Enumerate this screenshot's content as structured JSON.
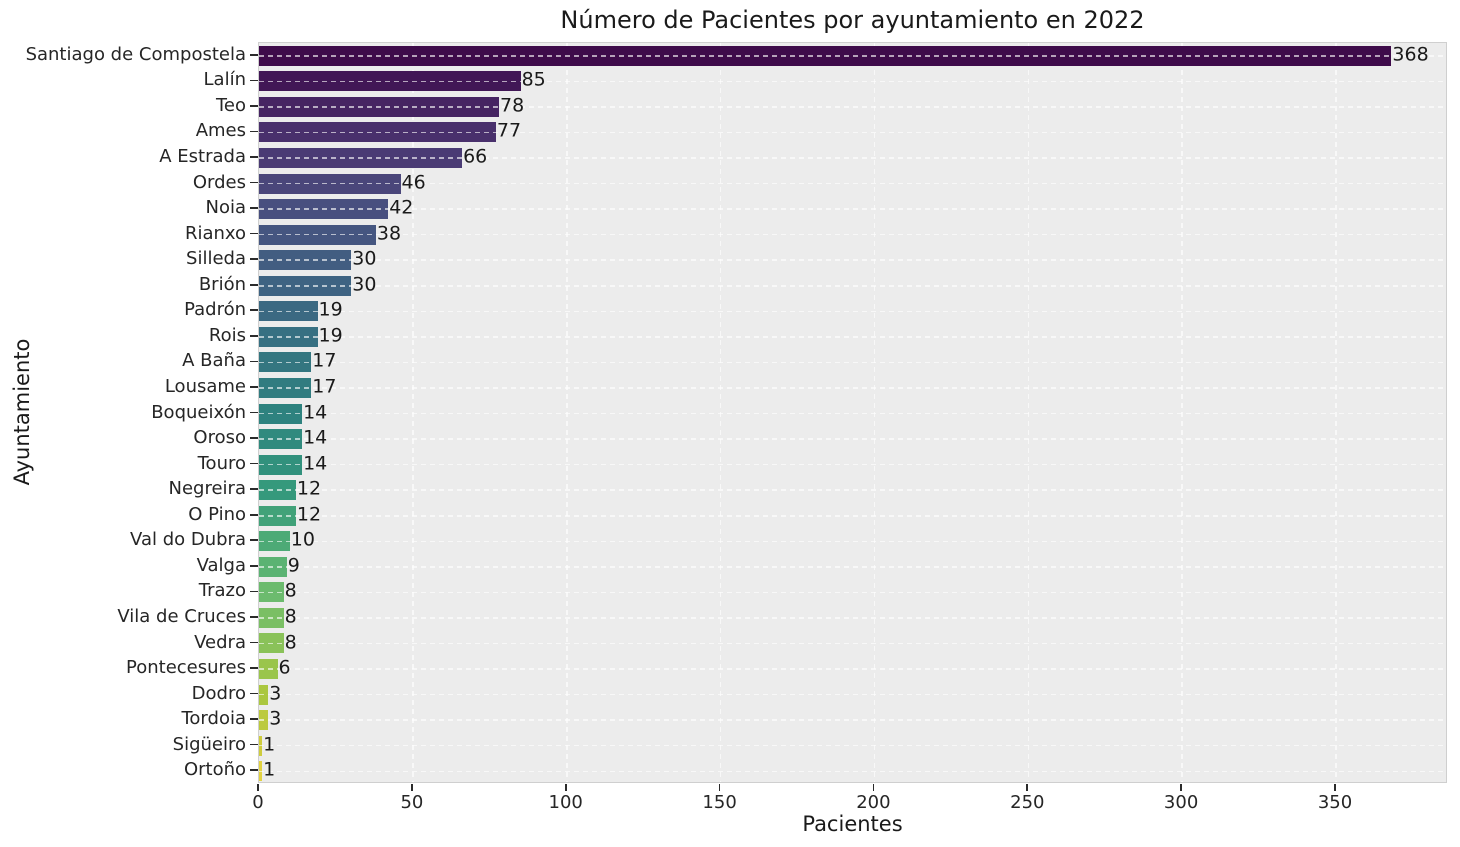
{
  "chart_data": {
    "type": "bar",
    "orientation": "horizontal",
    "title": "Número de Pacientes por ayuntamiento en 2022",
    "xlabel": "Pacientes",
    "ylabel": "Ayuntamiento",
    "categories": [
      "Santiago de Compostela",
      "Lalín",
      "Teo",
      "Ames",
      "A Estrada",
      "Ordes",
      "Noia",
      "Rianxo",
      "Silleda",
      "Brión",
      "Padrón",
      "Rois",
      "A Baña",
      "Lousame",
      "Boqueixón",
      "Oroso",
      "Touro",
      "Negreira",
      "O Pino",
      "Val do Dubra",
      "Valga",
      "Trazo",
      "Vila de Cruces",
      "Vedra",
      "Pontecesures",
      "Dodro",
      "Tordoia",
      "Sigüeiro",
      "Ortoño"
    ],
    "values": [
      368,
      85,
      78,
      77,
      66,
      46,
      42,
      38,
      30,
      30,
      19,
      19,
      17,
      17,
      14,
      14,
      14,
      12,
      12,
      10,
      9,
      8,
      8,
      8,
      6,
      3,
      3,
      1,
      1
    ],
    "bar_colors": [
      "#3e0b4a",
      "#411756",
      "#462462",
      "#49306c",
      "#4a3b74",
      "#4a467a",
      "#484f7f",
      "#455680",
      "#425d81",
      "#3e6382",
      "#3b6982",
      "#377082",
      "#347680",
      "#317c80",
      "#2e827f",
      "#308a7e",
      "#32917d",
      "#35997c",
      "#41a279",
      "#4daa76",
      "#5bb373",
      "#6cbb6e",
      "#7abf64",
      "#8ac259",
      "#9ac54c",
      "#abc740",
      "#bcca3d",
      "#cecc3d",
      "#e2d240"
    ],
    "palette": "viridis",
    "x_ticks": [
      0,
      50,
      100,
      150,
      200,
      250,
      300,
      350
    ],
    "xlim": [
      0,
      386.4
    ],
    "value_labels_shown": true,
    "grid": {
      "x": true,
      "y": true,
      "style": "dashed",
      "color": "rgba(255,255,255,0.62)"
    },
    "plot_bg": "#ececec",
    "figure_bg": "#ffffff",
    "text_color": "#1a1a1a"
  }
}
